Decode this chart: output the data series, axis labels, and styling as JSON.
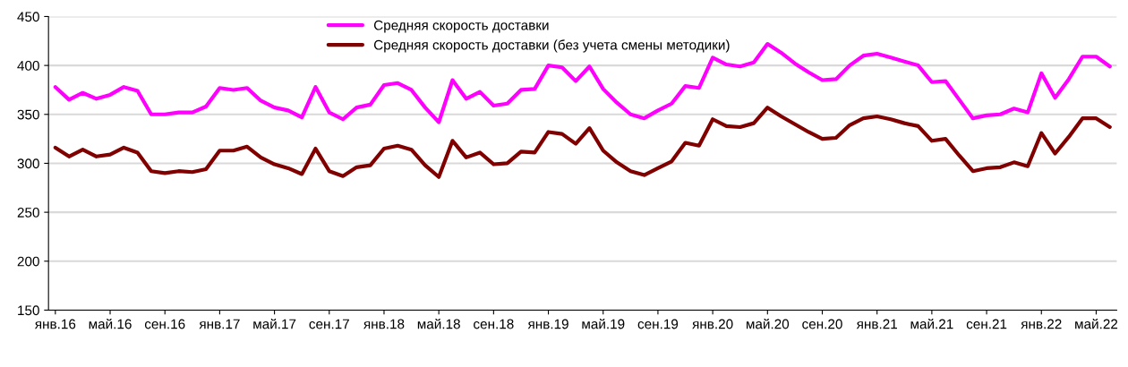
{
  "chart_data": {
    "type": "line",
    "categories": [
      "янв.16",
      null,
      null,
      null,
      "май.16",
      null,
      null,
      null,
      "сен.16",
      null,
      null,
      null,
      "янв.17",
      null,
      null,
      null,
      "май.17",
      null,
      null,
      null,
      "сен.17",
      null,
      null,
      null,
      "янв.18",
      null,
      null,
      null,
      "май.18",
      null,
      null,
      null,
      "сен.18",
      null,
      null,
      null,
      "янв.19",
      null,
      null,
      null,
      "май.19",
      null,
      null,
      null,
      "сен.19",
      null,
      null,
      null,
      "янв.20",
      null,
      null,
      null,
      "май.20",
      null,
      null,
      null,
      "сен.20",
      null,
      null,
      null,
      "янв.21",
      null,
      null,
      null,
      "май.21",
      null,
      null,
      null,
      "сен.21",
      null,
      null,
      null,
      "янв.22",
      null,
      null,
      null,
      "май.22",
      null
    ],
    "series": [
      {
        "name": "Средняя скорость доставки",
        "color": "#ff00ff",
        "values": [
          378,
          365,
          372,
          366,
          370,
          378,
          374,
          350,
          350,
          352,
          352,
          358,
          377,
          375,
          377,
          364,
          357,
          354,
          347,
          378,
          352,
          345,
          357,
          360,
          380,
          382,
          375,
          357,
          342,
          385,
          366,
          373,
          359,
          361,
          375,
          376,
          400,
          398,
          384,
          399,
          376,
          362,
          350,
          346,
          354,
          361,
          379,
          377,
          408,
          401,
          399,
          403,
          422,
          413,
          402,
          393,
          385,
          386,
          400,
          410,
          412,
          408,
          404,
          400,
          383,
          384,
          365,
          346,
          349,
          350,
          356,
          352,
          392,
          367,
          386,
          409,
          409,
          399
        ]
      },
      {
        "name": "Средняя скорость доставки (без учета смены методики)",
        "color": "#800000",
        "values": [
          316,
          307,
          314,
          307,
          309,
          316,
          311,
          292,
          290,
          292,
          291,
          294,
          313,
          313,
          317,
          306,
          299,
          295,
          289,
          315,
          292,
          287,
          296,
          298,
          315,
          318,
          314,
          298,
          286,
          323,
          306,
          311,
          299,
          300,
          312,
          311,
          332,
          330,
          320,
          336,
          313,
          301,
          292,
          288,
          295,
          302,
          321,
          318,
          345,
          338,
          337,
          341,
          357,
          348,
          340,
          332,
          325,
          326,
          339,
          346,
          348,
          345,
          341,
          338,
          323,
          325,
          308,
          292,
          295,
          296,
          301,
          297,
          331,
          310,
          327,
          346,
          346,
          337
        ]
      }
    ],
    "ylim": [
      150,
      450
    ],
    "yticks": [
      150,
      200,
      250,
      300,
      350,
      400,
      450
    ],
    "grid": "y",
    "legend": "top",
    "marker": "none",
    "line_style": "solid"
  }
}
